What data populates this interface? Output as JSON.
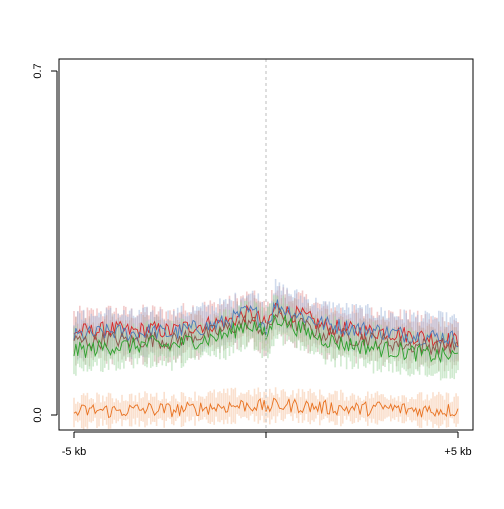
{
  "chart_data": {
    "type": "line",
    "title": "",
    "xlabel": "",
    "ylabel": "",
    "x_range": [
      -5,
      5
    ],
    "x_unit": "kb",
    "ylim": [
      0.0,
      0.7
    ],
    "x_tick_labels": [
      "-5 kb",
      "",
      "+5 kb"
    ],
    "y_tick_labels": [
      "0.0",
      "0.7"
    ],
    "y_tick_values": [
      0.0,
      0.7
    ],
    "x_tick_values": [
      -5,
      0,
      5
    ],
    "center_line": 0,
    "grid": false,
    "legend": "none",
    "series": [
      {
        "color": "#d62728",
        "band_color": "#e8a0a0",
        "x": [
          -5,
          -4.5,
          -4,
          -3.5,
          -3,
          -2.5,
          -2,
          -1.5,
          -1,
          -0.5,
          -0.25,
          0,
          0.25,
          0.5,
          1,
          1.5,
          2,
          2.5,
          3,
          3.5,
          4,
          4.5,
          5
        ],
        "y": [
          0.17,
          0.17,
          0.175,
          0.17,
          0.175,
          0.17,
          0.18,
          0.185,
          0.19,
          0.205,
          0.2,
          0.18,
          0.22,
          0.21,
          0.2,
          0.18,
          0.175,
          0.17,
          0.17,
          0.165,
          0.16,
          0.155,
          0.15
        ]
      },
      {
        "color": "#4a7ab8",
        "band_color": "#a8bcdc",
        "x": [
          -5,
          -4.5,
          -4,
          -3.5,
          -3,
          -2.5,
          -2,
          -1.5,
          -1,
          -0.5,
          -0.25,
          0,
          0.25,
          0.5,
          1,
          1.5,
          2,
          2.5,
          3,
          3.5,
          4,
          4.5,
          5
        ],
        "y": [
          0.16,
          0.165,
          0.17,
          0.165,
          0.17,
          0.165,
          0.175,
          0.18,
          0.19,
          0.21,
          0.205,
          0.18,
          0.225,
          0.215,
          0.2,
          0.185,
          0.18,
          0.175,
          0.17,
          0.165,
          0.16,
          0.16,
          0.155
        ]
      },
      {
        "color": "#8c564b",
        "band_color": "#c7a8a0",
        "x": [
          -5,
          -4.5,
          -4,
          -3.5,
          -3,
          -2.5,
          -2,
          -1.5,
          -1,
          -0.5,
          -0.25,
          0,
          0.25,
          0.5,
          1,
          1.5,
          2,
          2.5,
          3,
          3.5,
          4,
          4.5,
          5
        ],
        "y": [
          0.15,
          0.15,
          0.155,
          0.15,
          0.155,
          0.15,
          0.16,
          0.165,
          0.175,
          0.19,
          0.185,
          0.165,
          0.205,
          0.195,
          0.18,
          0.165,
          0.16,
          0.155,
          0.15,
          0.145,
          0.14,
          0.14,
          0.14
        ]
      },
      {
        "color": "#2ca02c",
        "band_color": "#a8d8a8",
        "x": [
          -5,
          -4.5,
          -4,
          -3.5,
          -3,
          -2.5,
          -2,
          -1.5,
          -1,
          -0.5,
          -0.25,
          0,
          0.25,
          0.5,
          1,
          1.5,
          2,
          2.5,
          3,
          3.5,
          4,
          4.5,
          5
        ],
        "y": [
          0.13,
          0.135,
          0.14,
          0.14,
          0.145,
          0.14,
          0.15,
          0.155,
          0.165,
          0.185,
          0.18,
          0.16,
          0.2,
          0.19,
          0.17,
          0.155,
          0.145,
          0.14,
          0.135,
          0.13,
          0.125,
          0.12,
          0.12
        ]
      },
      {
        "color": "#e8701e",
        "band_color": "#f5c7a6",
        "x": [
          -5,
          -4.5,
          -4,
          -3.5,
          -3,
          -2.5,
          -2,
          -1.5,
          -1,
          -0.5,
          -0.25,
          0,
          0.25,
          0.5,
          1,
          1.5,
          2,
          2.5,
          3,
          3.5,
          4,
          4.5,
          5
        ],
        "y": [
          0.005,
          0.01,
          0.008,
          0.01,
          0.012,
          0.01,
          0.012,
          0.015,
          0.018,
          0.02,
          0.02,
          0.015,
          0.02,
          0.02,
          0.018,
          0.015,
          0.014,
          0.012,
          0.015,
          0.012,
          0.01,
          0.01,
          0.01
        ]
      }
    ]
  }
}
